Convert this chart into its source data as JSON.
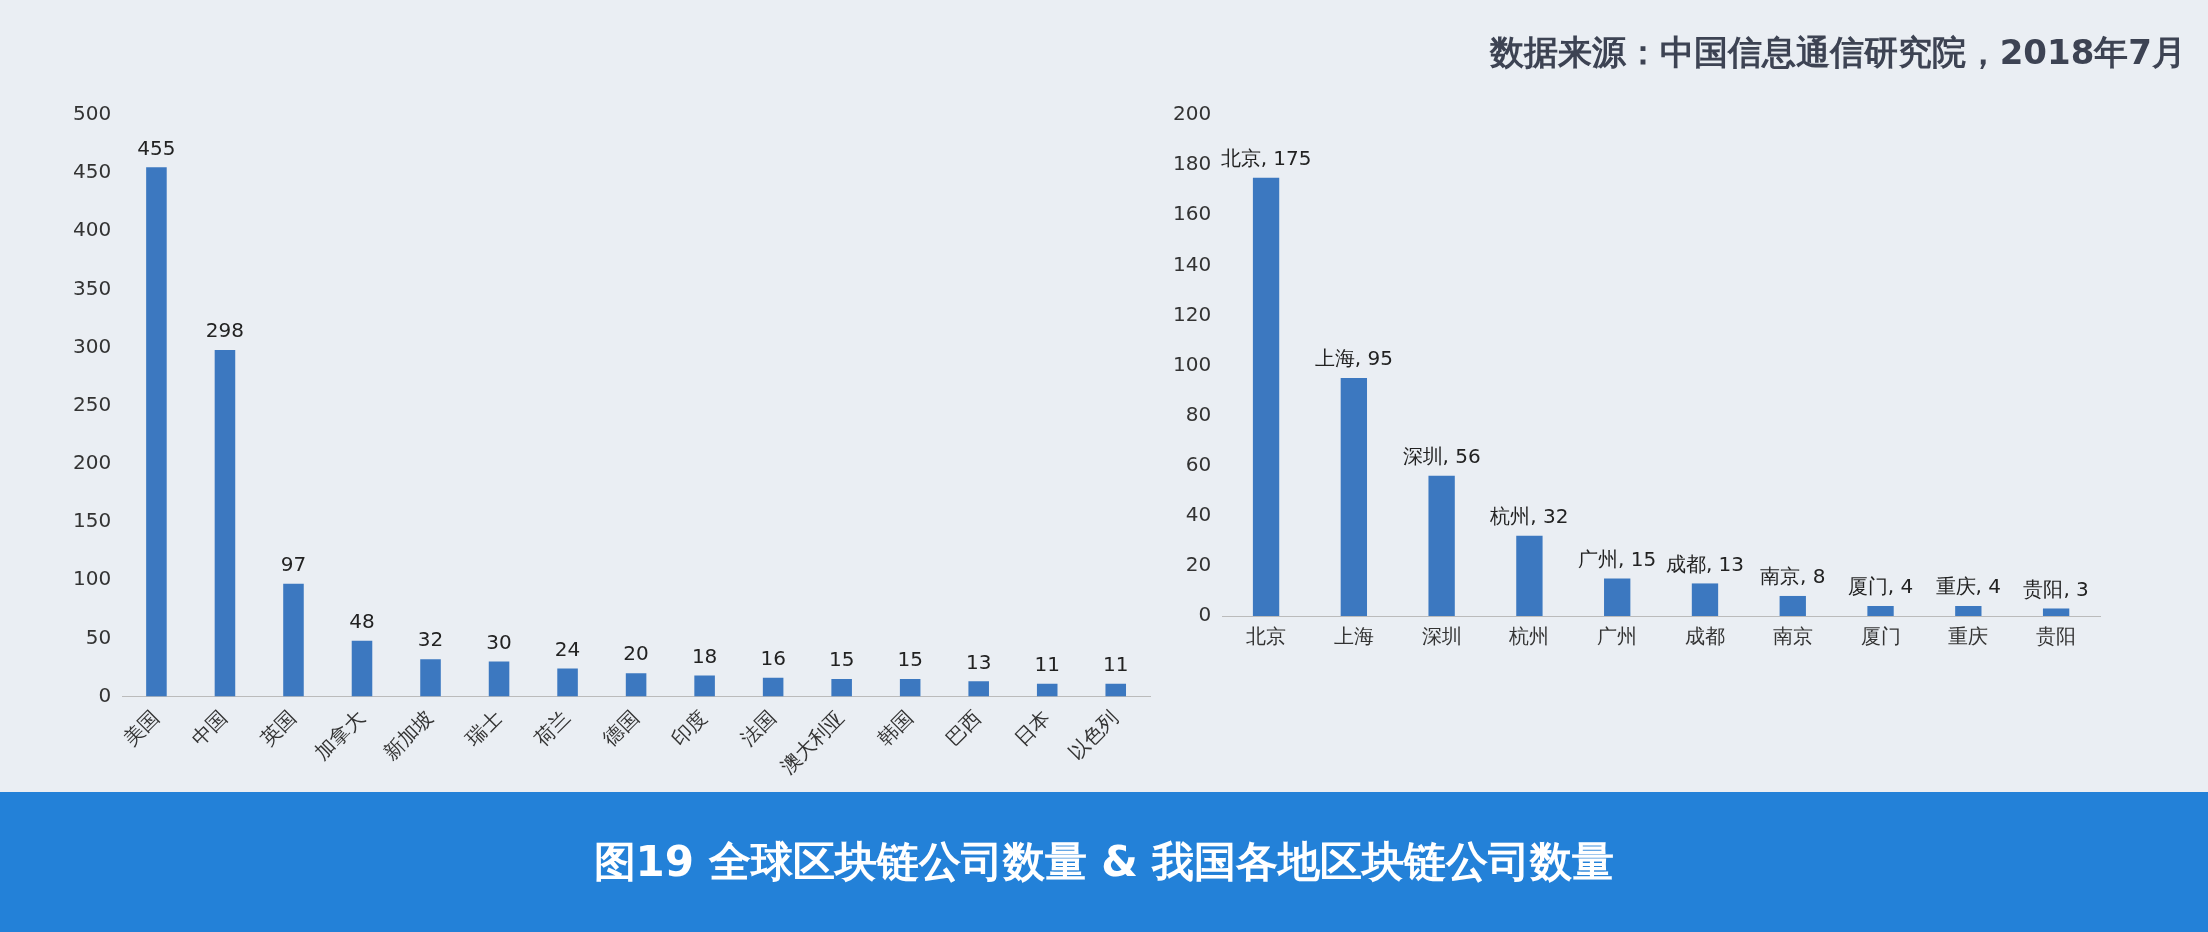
{
  "chart_data": [
    {
      "type": "bar",
      "title": "图19 全球区块链公司数量 & 我国各地区块链公司数量",
      "categories": [
        "美国",
        "中国",
        "英国",
        "加拿大",
        "新加坡",
        "瑞士",
        "荷兰",
        "德国",
        "印度",
        "法国",
        "澳大利亚",
        "韩国",
        "巴西",
        "日本",
        "以色列"
      ],
      "values": [
        455,
        298,
        97,
        48,
        32,
        30,
        24,
        20,
        18,
        16,
        15,
        15,
        13,
        11,
        11
      ],
      "color": "#3c78c0",
      "ylim": [
        0,
        500
      ],
      "yticks": [
        0,
        50,
        100,
        150,
        200,
        250,
        300,
        350,
        400,
        450,
        500
      ],
      "grid": false,
      "legend": false,
      "data_labels": true
    },
    {
      "type": "bar",
      "annotations": [
        "数据来源：中国信息通信研究院，2018年7月"
      ],
      "categories": [
        "北京",
        "上海",
        "深圳",
        "杭州",
        "广州",
        "成都",
        "南京",
        "厦门",
        "重庆",
        "贵阳"
      ],
      "values": [
        175,
        95,
        56,
        32,
        15,
        13,
        8,
        4,
        4,
        3
      ],
      "value_labels": [
        "北京, 175",
        "上海, 95",
        "深圳, 56",
        "杭州, 32",
        "广州, 15",
        "成都, 13",
        "南京, 8",
        "厦门, 4",
        "重庆, 4",
        "贵阳, 3"
      ],
      "color": "#3c78c0",
      "ylim": [
        0,
        200
      ],
      "yticks": [
        0,
        20,
        40,
        60,
        80,
        100,
        120,
        140,
        160,
        180,
        200
      ],
      "grid": false,
      "legend": false
    }
  ]
}
